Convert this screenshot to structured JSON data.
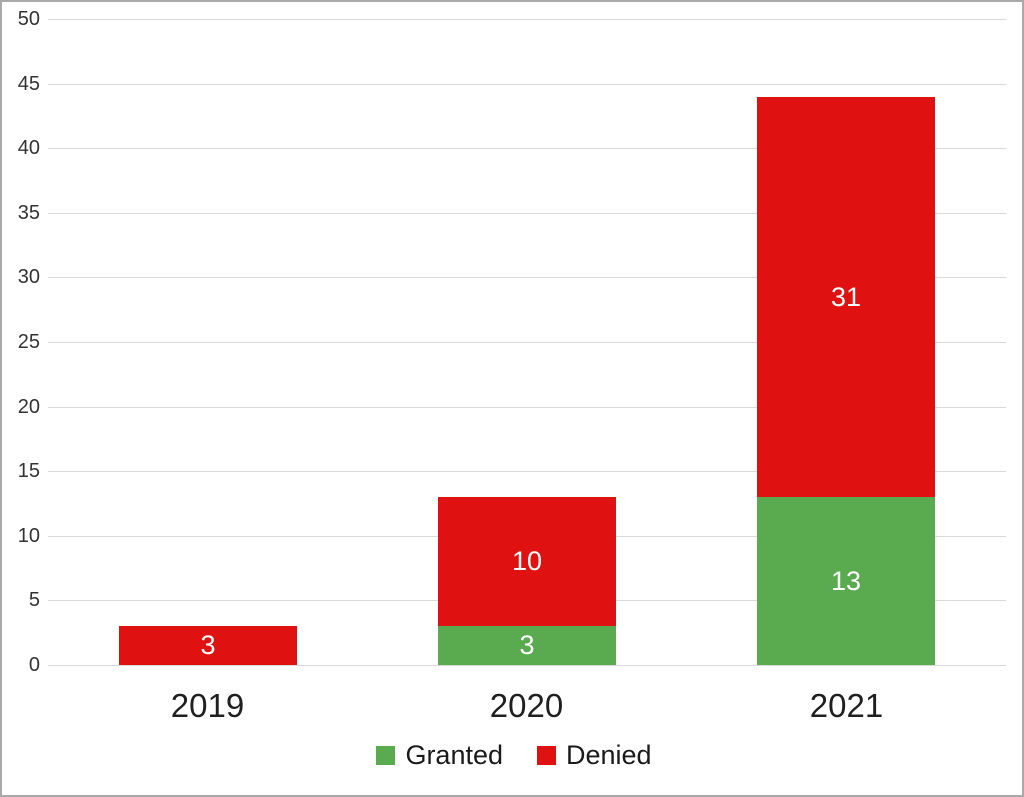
{
  "chart_data": {
    "type": "bar",
    "stacked": true,
    "title": "",
    "xlabel": "",
    "ylabel": "",
    "categories": [
      "2019",
      "2020",
      "2021"
    ],
    "series": [
      {
        "name": "Granted",
        "color": "#5aaa50",
        "values": [
          0,
          3,
          13
        ]
      },
      {
        "name": "Denied",
        "color": "#e01111",
        "values": [
          3,
          10,
          31
        ]
      }
    ],
    "data_labels": {
      "show": true,
      "color": "#ffffff",
      "values_by_category": [
        {
          "category": "2019",
          "Granted": null,
          "Denied": "3"
        },
        {
          "category": "2020",
          "Granted": "3",
          "Denied": "10"
        },
        {
          "category": "2021",
          "Granted": "13",
          "Denied": "31"
        }
      ]
    },
    "ylim": [
      0,
      50
    ],
    "ytick_step": 5,
    "ytick_labels": [
      "0",
      "5",
      "10",
      "15",
      "20",
      "25",
      "30",
      "35",
      "40",
      "45",
      "50"
    ],
    "grid": true,
    "gridline_color": "#d9d9d9",
    "legend_position": "bottom",
    "legend_entries": [
      "Granted",
      "Denied"
    ]
  },
  "style_colors": {
    "granted_green": "#5aaa50",
    "denied_red": "#e01111",
    "tick_text": "#333333",
    "axis_text": "#1f1f1f",
    "frame_border": "#a9a9a9",
    "background": "#ffffff"
  }
}
